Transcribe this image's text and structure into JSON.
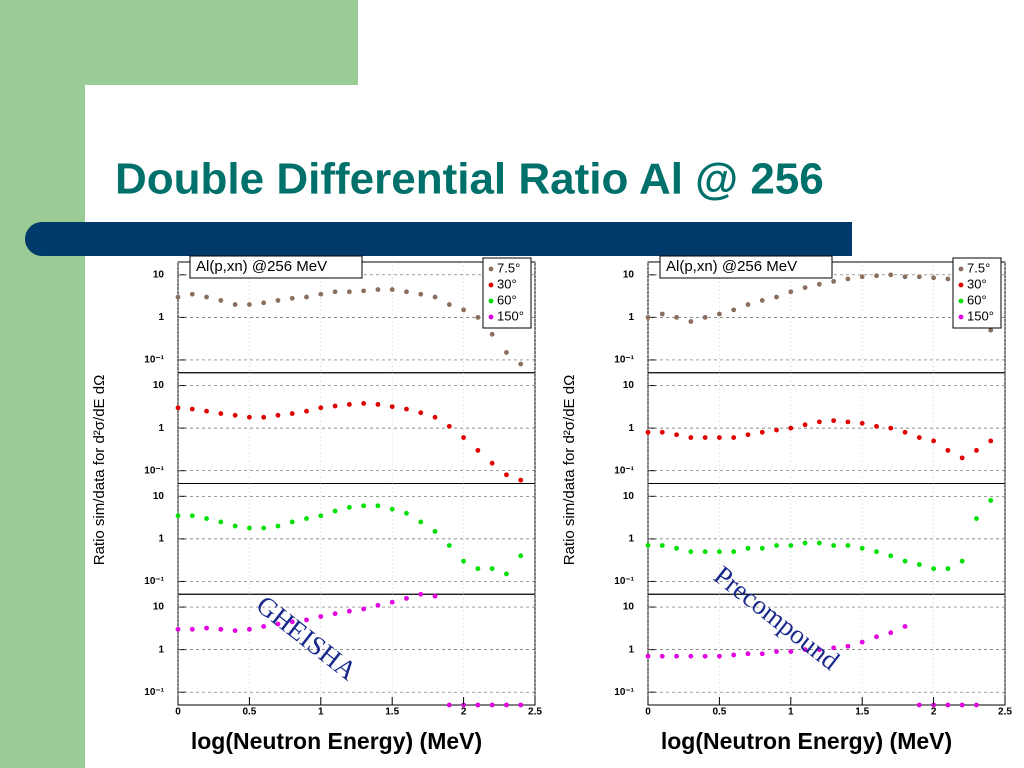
{
  "title": "Double Differential Ratio Al @ 256",
  "annotations": [
    "GHEISHA",
    "Precompound"
  ],
  "chart_data": [
    {
      "type": "scatter",
      "title": "Al(p,xn) @256 MeV",
      "xlabel": "log(Neutron Energy) (MeV)",
      "ylabel": "Ratio sim/data for d²σ/dE dΩ",
      "log_y": true,
      "grid": true,
      "legend": "top-right",
      "xlim": [
        0,
        2.5
      ],
      "xticks": [
        0,
        0.5,
        1,
        1.5,
        2,
        2.5
      ],
      "ylim": [
        0.05,
        20
      ],
      "yticks": [
        {
          "value": 0.1,
          "label": "10⁻¹"
        },
        1,
        10
      ],
      "x": [
        0,
        0.1,
        0.2,
        0.3,
        0.4,
        0.5,
        0.6,
        0.7,
        0.8,
        0.9,
        1,
        1.1,
        1.2,
        1.3,
        1.4,
        1.5,
        1.6,
        1.7,
        1.8,
        1.9,
        2,
        2.1,
        2.2,
        2.3,
        2.4
      ],
      "series": [
        {
          "name": "7.5°",
          "color": "#8b6f5e",
          "values": [
            3,
            3.5,
            3,
            2.5,
            2,
            2,
            2.2,
            2.5,
            2.8,
            3,
            3.5,
            4,
            4,
            4.2,
            4.5,
            4.5,
            4,
            3.5,
            3,
            2,
            1.5,
            1,
            0.4,
            0.15,
            0.08
          ]
        },
        {
          "name": "30°",
          "color": "#e00000",
          "values": [
            3,
            2.8,
            2.5,
            2.2,
            2,
            1.8,
            1.8,
            2,
            2.2,
            2.5,
            3,
            3.3,
            3.6,
            3.8,
            3.6,
            3.2,
            2.8,
            2.3,
            1.8,
            1.1,
            0.6,
            0.3,
            0.15,
            0.08,
            0.06
          ]
        },
        {
          "name": "60°",
          "color": "#00e000",
          "values": [
            3.5,
            3.5,
            3,
            2.5,
            2,
            1.8,
            1.8,
            2,
            2.5,
            3,
            3.5,
            4.5,
            5.5,
            6,
            6,
            5,
            4,
            2.5,
            1.5,
            0.7,
            0.3,
            0.2,
            0.2,
            0.15,
            0.4
          ]
        },
        {
          "name": "150°",
          "color": "#e000e0",
          "values": [
            3,
            3,
            3.2,
            3,
            2.8,
            3,
            3.5,
            4,
            4.5,
            5,
            6,
            7,
            8,
            9,
            11,
            13,
            16,
            20,
            18,
            0.05,
            0.05,
            0.05,
            0.05,
            0.05,
            0.05
          ]
        }
      ]
    },
    {
      "type": "scatter",
      "title": "Al(p,xn) @256 MeV",
      "xlabel": "log(Neutron Energy) (MeV)",
      "ylabel": "Ratio sim/data for d²σ/dE dΩ",
      "log_y": true,
      "grid": true,
      "legend": "top-right",
      "xlim": [
        0,
        2.5
      ],
      "xticks": [
        0,
        0.5,
        1,
        1.5,
        2,
        2.5
      ],
      "ylim": [
        0.05,
        20
      ],
      "yticks": [
        {
          "value": 0.1,
          "label": "10⁻¹"
        },
        1,
        10
      ],
      "x": [
        0,
        0.1,
        0.2,
        0.3,
        0.4,
        0.5,
        0.6,
        0.7,
        0.8,
        0.9,
        1,
        1.1,
        1.2,
        1.3,
        1.4,
        1.5,
        1.6,
        1.7,
        1.8,
        1.9,
        2,
        2.1,
        2.2,
        2.3,
        2.4
      ],
      "series": [
        {
          "name": "7.5°",
          "color": "#8b6f5e",
          "values": [
            1,
            1.2,
            1,
            0.8,
            1,
            1.2,
            1.5,
            2,
            2.5,
            3,
            4,
            5,
            6,
            7,
            8,
            9,
            9.5,
            10,
            9,
            9,
            8.5,
            8,
            6,
            1,
            0.5
          ]
        },
        {
          "name": "30°",
          "color": "#e00000",
          "values": [
            0.8,
            0.8,
            0.7,
            0.6,
            0.6,
            0.6,
            0.6,
            0.7,
            0.8,
            0.9,
            1,
            1.2,
            1.4,
            1.5,
            1.4,
            1.3,
            1.1,
            1,
            0.8,
            0.6,
            0.5,
            0.3,
            0.2,
            0.3,
            0.5
          ]
        },
        {
          "name": "60°",
          "color": "#00e000",
          "values": [
            0.7,
            0.7,
            0.6,
            0.5,
            0.5,
            0.5,
            0.5,
            0.6,
            0.6,
            0.7,
            0.7,
            0.8,
            0.8,
            0.7,
            0.7,
            0.6,
            0.5,
            0.4,
            0.3,
            0.25,
            0.2,
            0.2,
            0.3,
            3,
            8
          ]
        },
        {
          "name": "150°",
          "color": "#e000e0",
          "values": [
            0.7,
            0.7,
            0.7,
            0.7,
            0.7,
            0.7,
            0.75,
            0.8,
            0.8,
            0.9,
            0.9,
            1,
            1,
            1.1,
            1.2,
            1.5,
            2,
            2.5,
            3.5,
            0.05,
            0.05,
            0.05,
            0.05,
            0.05,
            null
          ]
        }
      ]
    }
  ]
}
